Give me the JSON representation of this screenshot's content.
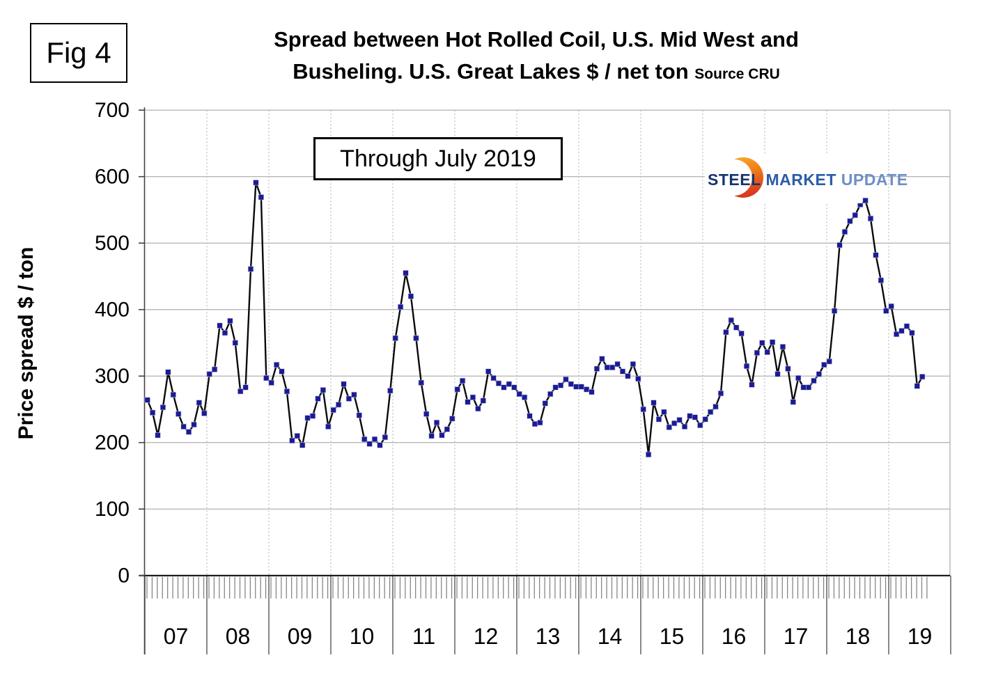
{
  "figure": {
    "label": "Fig 4"
  },
  "header": {
    "title_line1": "Spread between Hot Rolled Coil, U.S. Mid West and",
    "title_line2": "Busheling. U.S. Great Lakes  $ / net ton",
    "source": "Source CRU"
  },
  "annotation_box": {
    "text": "Through July 2019"
  },
  "logo": {
    "steel": "STEEL",
    "market": "MARKET",
    "update": "UPDATE",
    "crescent_color_top": "#f9b234",
    "crescent_color_bottom": "#d93a20"
  },
  "chart_data": {
    "type": "line",
    "title": "Spread between Hot Rolled Coil, U.S. Mid West and Busheling. U.S. Great Lakes $ / net ton",
    "xlabel": "",
    "ylabel": "Price spread $ / ton",
    "ylim": [
      0,
      700
    ],
    "ytick_labels": [
      "0",
      "100",
      "200",
      "300",
      "400",
      "500",
      "600",
      "700"
    ],
    "grid": "horizontal-solid, yearly-vertical-dashed",
    "legend_position": "none",
    "annotation": "Through July 2019",
    "line_color": "#0a0a0a",
    "marker_color": "#1b1b96",
    "marker_shape": "square",
    "series_name": "Hot Rolled Coil minus Busheling price spread ($/net ton, monthly)",
    "years": [
      {
        "year": "07",
        "values": [
          264,
          245,
          211,
          253,
          306,
          272,
          243,
          224,
          216,
          227,
          260,
          244
        ]
      },
      {
        "year": "08",
        "values": [
          303,
          310,
          376,
          365,
          383,
          350,
          277,
          283,
          461,
          591,
          569,
          297
        ]
      },
      {
        "year": "09",
        "values": [
          290,
          317,
          307,
          277,
          203,
          210,
          196,
          237,
          240,
          266,
          279,
          224
        ]
      },
      {
        "year": "10",
        "values": [
          249,
          257,
          288,
          266,
          272,
          241,
          205,
          198,
          205,
          196,
          208,
          278
        ]
      },
      {
        "year": "11",
        "values": [
          357,
          404,
          455,
          420,
          357,
          290,
          243,
          210,
          230,
          211,
          220,
          236
        ]
      },
      {
        "year": "12",
        "values": [
          280,
          293,
          261,
          268,
          251,
          263,
          307,
          297,
          289,
          283,
          288,
          283
        ]
      },
      {
        "year": "13",
        "values": [
          273,
          268,
          240,
          228,
          230,
          259,
          273,
          283,
          286,
          295,
          288,
          284
        ]
      },
      {
        "year": "14",
        "values": [
          284,
          280,
          276,
          311,
          326,
          313,
          313,
          318,
          307,
          300,
          318,
          296
        ]
      },
      {
        "year": "15",
        "values": [
          250,
          182,
          260,
          235,
          246,
          223,
          229,
          234,
          224,
          240,
          238,
          226
        ]
      },
      {
        "year": "16",
        "values": [
          235,
          246,
          254,
          274,
          366,
          384,
          373,
          364,
          315,
          287,
          335,
          350
        ]
      },
      {
        "year": "17",
        "values": [
          336,
          351,
          303,
          344,
          311,
          261,
          297,
          283,
          283,
          293,
          303,
          317
        ]
      },
      {
        "year": "18",
        "values": [
          322,
          398,
          497,
          517,
          533,
          542,
          558,
          564,
          537,
          482,
          444,
          398
        ]
      },
      {
        "year": "19",
        "values": [
          405,
          363,
          368,
          375,
          365,
          285,
          299
        ]
      }
    ]
  }
}
